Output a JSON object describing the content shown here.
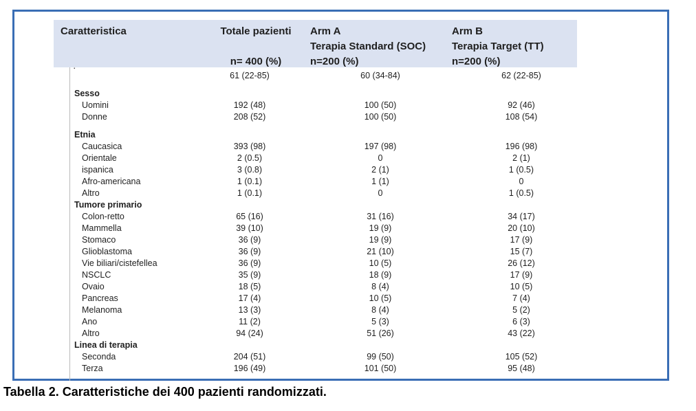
{
  "colors": {
    "frame_border": "#3a6eb5",
    "header_bg": "#dbe2f1",
    "text": "#1f1f1f"
  },
  "caption": {
    "text": "Tabella 2. Caratteristiche dei 400 pazienti randomizzati."
  },
  "table": {
    "clipped_fragment": ".",
    "header": {
      "characteristic": "Caratteristica",
      "total": {
        "title": "Totale pazienti",
        "n": "n= 400 (%)"
      },
      "arm_a": {
        "title": "Arm A",
        "subtitle": "Terapia Standard (SOC)",
        "n": "n=200 (%)"
      },
      "arm_b": {
        "title": "Arm B",
        "subtitle": "Terapia Target (TT)",
        "n": "n=200 (%)"
      }
    },
    "rows": [
      {
        "type": "item",
        "label": "",
        "values": [
          "61 (22-85)",
          "60 (34-84)",
          "62 (22-85)"
        ]
      },
      {
        "type": "spacer"
      },
      {
        "type": "section",
        "label": "Sesso",
        "values": [
          "",
          "",
          ""
        ]
      },
      {
        "type": "item",
        "label": "Uomini",
        "values": [
          "192 (48)",
          "100 (50)",
          "92 (46)"
        ]
      },
      {
        "type": "item",
        "label": "Donne",
        "values": [
          "208 (52)",
          "100 (50)",
          "108 (54)"
        ]
      },
      {
        "type": "spacer"
      },
      {
        "type": "section",
        "label": "Etnia",
        "values": [
          "",
          "",
          ""
        ]
      },
      {
        "type": "item",
        "label": "Caucasica",
        "values": [
          "393 (98)",
          "197 (98)",
          "196 (98)"
        ]
      },
      {
        "type": "item",
        "label": "Orientale",
        "values": [
          "2 (0.5)",
          "0",
          "2 (1)"
        ]
      },
      {
        "type": "item",
        "label": "ispanica",
        "values": [
          "3 (0.8)",
          "2 (1)",
          "1 (0.5)"
        ]
      },
      {
        "type": "item",
        "label": "Afro-americana",
        "values": [
          "1 (0.1)",
          "1 (1)",
          "0"
        ]
      },
      {
        "type": "item",
        "label": "Altro",
        "values": [
          "1 (0.1)",
          "0",
          "1 (0.5)"
        ]
      },
      {
        "type": "section",
        "label": "Tumore primario",
        "values": [
          "",
          "",
          ""
        ]
      },
      {
        "type": "item",
        "label": "Colon-retto",
        "values": [
          "65 (16)",
          "31 (16)",
          "34 (17)"
        ]
      },
      {
        "type": "item",
        "label": "Mammella",
        "values": [
          "39 (10)",
          "19 (9)",
          "20 (10)"
        ]
      },
      {
        "type": "item",
        "label": "Stomaco",
        "values": [
          "36 (9)",
          "19 (9)",
          "17 (9)"
        ]
      },
      {
        "type": "item",
        "label": "Glioblastoma",
        "values": [
          "36 (9)",
          "21 (10)",
          "15 (7)"
        ]
      },
      {
        "type": "item",
        "label": "Vie biliari/cistefellea",
        "values": [
          "36 (9)",
          "10 (5)",
          "26 (12)"
        ]
      },
      {
        "type": "item",
        "label": "NSCLC",
        "values": [
          "35 (9)",
          "18 (9)",
          "17 (9)"
        ]
      },
      {
        "type": "item",
        "label": "Ovaio",
        "values": [
          "18 (5)",
          "8 (4)",
          "10 (5)"
        ]
      },
      {
        "type": "item",
        "label": "Pancreas",
        "values": [
          "17 (4)",
          "10 (5)",
          "7 (4)"
        ]
      },
      {
        "type": "item",
        "label": "Melanoma",
        "values": [
          "13 (3)",
          "8 (4)",
          "5 (2)"
        ]
      },
      {
        "type": "item",
        "label": "Ano",
        "values": [
          "11 (2)",
          "5 (3)",
          "6 (3)"
        ]
      },
      {
        "type": "item",
        "label": "Altro",
        "values": [
          "94 (24)",
          "51 (26)",
          "43 (22)"
        ]
      },
      {
        "type": "section",
        "label": "Linea di terapia",
        "values": [
          "",
          "",
          ""
        ]
      },
      {
        "type": "item",
        "label": "Seconda",
        "values": [
          "204 (51)",
          "99 (50)",
          "105 (52)"
        ]
      },
      {
        "type": "item",
        "label": "Terza",
        "values": [
          "196 (49)",
          "101 (50)",
          "95 (48)"
        ]
      }
    ]
  }
}
